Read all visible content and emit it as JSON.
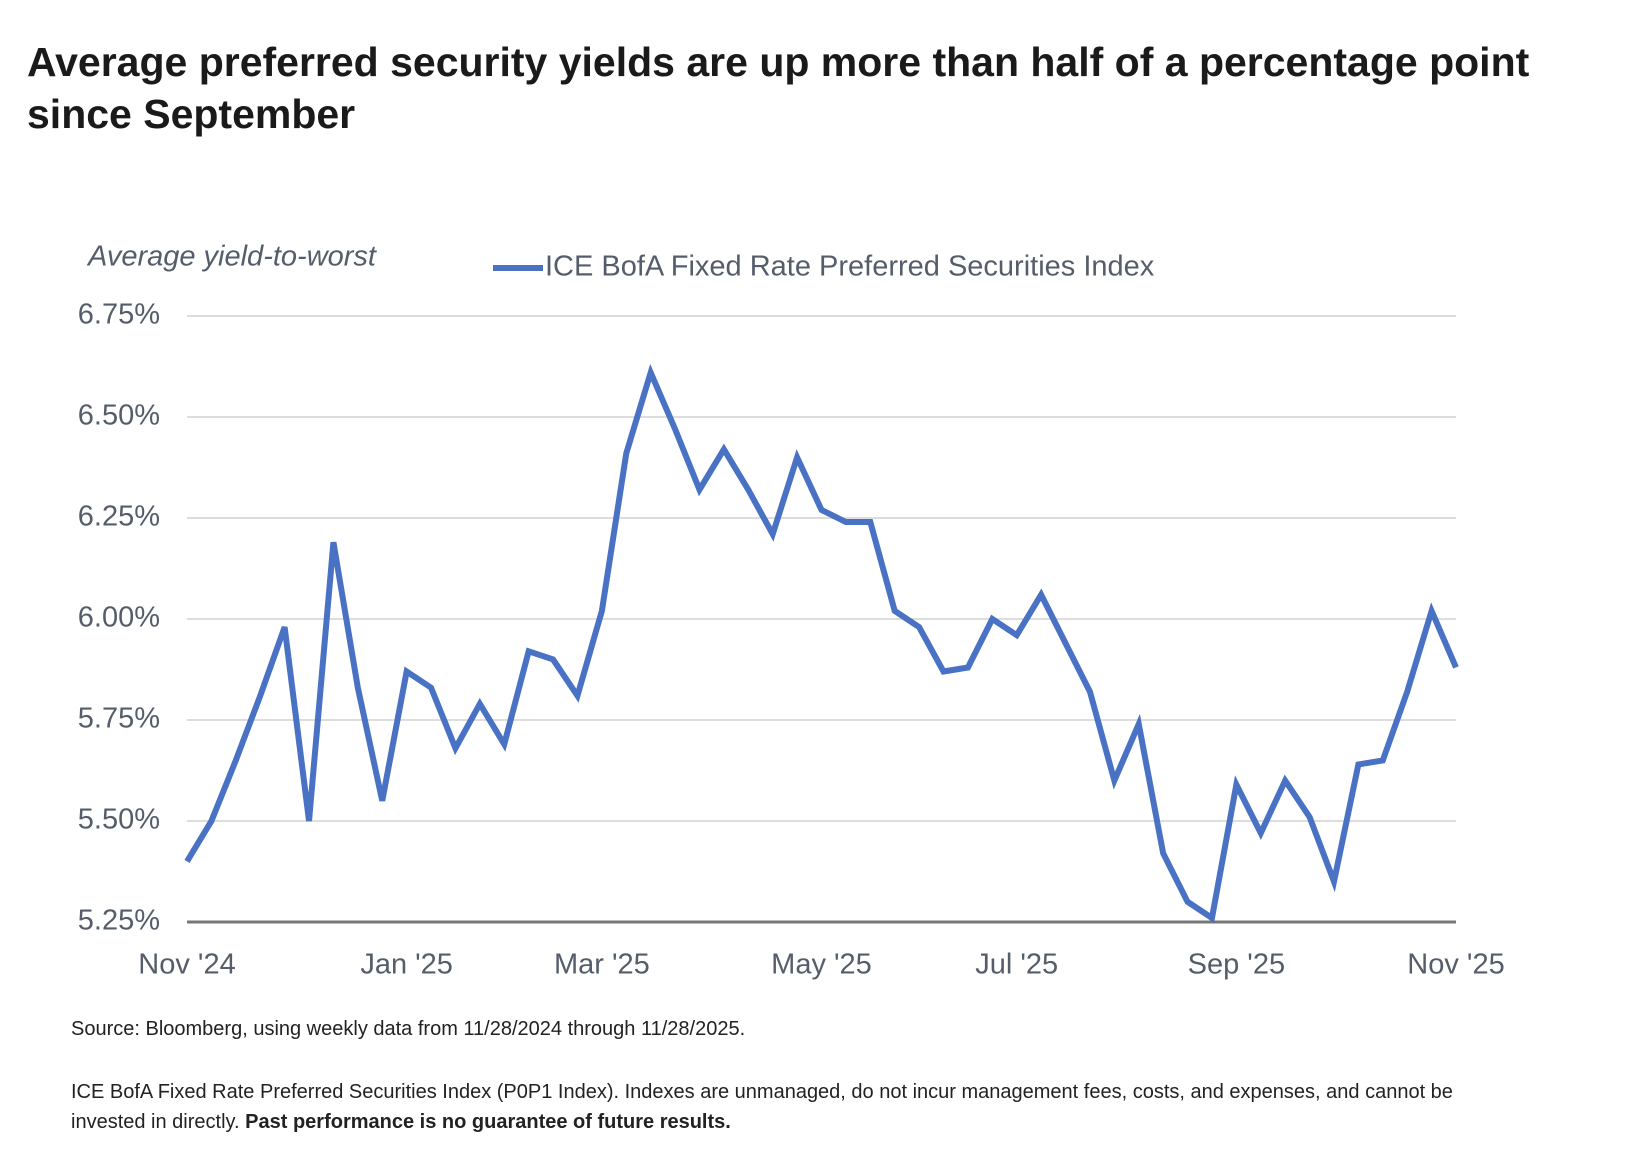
{
  "chart_data": {
    "type": "line",
    "title": "Average preferred security yields are up more than half of a percentage point since September",
    "y_axis_label": "Average yield-to-worst",
    "categories": [
      "Nov '24",
      null,
      null,
      null,
      null,
      null,
      null,
      null,
      null,
      "Jan '25",
      null,
      null,
      null,
      null,
      null,
      null,
      null,
      "Mar '25",
      null,
      null,
      null,
      null,
      null,
      null,
      null,
      null,
      "May '25",
      null,
      null,
      null,
      null,
      null,
      null,
      null,
      "Jul '25",
      null,
      null,
      null,
      null,
      null,
      null,
      null,
      null,
      "Sep '25",
      null,
      null,
      null,
      null,
      null,
      null,
      null,
      null,
      "Nov '25"
    ],
    "series": [
      {
        "name": "ICE BofA Fixed Rate Preferred Securities Index",
        "color": "#4a72c4",
        "values": [
          5.4,
          5.5,
          5.65,
          5.81,
          5.98,
          5.5,
          6.19,
          5.83,
          5.55,
          5.87,
          5.83,
          5.68,
          5.79,
          5.69,
          5.92,
          5.9,
          5.81,
          6.02,
          6.41,
          6.61,
          6.47,
          6.32,
          6.42,
          6.32,
          6.21,
          6.4,
          6.27,
          6.24,
          6.24,
          6.02,
          5.98,
          5.87,
          5.88,
          6.0,
          5.96,
          6.06,
          5.94,
          5.82,
          5.6,
          5.74,
          5.42,
          5.3,
          5.26,
          5.59,
          5.47,
          5.6,
          5.51,
          5.35,
          5.64,
          5.65,
          5.82,
          6.02,
          5.88
        ]
      }
    ],
    "ylim": [
      5.25,
      6.75
    ],
    "yticks": [
      {
        "value": 5.25,
        "label": "5.25%"
      },
      {
        "value": 5.5,
        "label": "5.50%"
      },
      {
        "value": 5.75,
        "label": "5.75%"
      },
      {
        "value": 6.0,
        "label": "6.00%"
      },
      {
        "value": 6.25,
        "label": "6.25%"
      },
      {
        "value": 6.5,
        "label": "6.50%"
      },
      {
        "value": 6.75,
        "label": "6.75%"
      }
    ],
    "grid": true,
    "source": "Source: Bloomberg, using weekly data from 11/28/2024 through 11/28/2025.",
    "note": "ICE BofA Fixed Rate Preferred Securities Index (P0P1 Index). Indexes are unmanaged, do not incur management fees, costs, and expenses, and cannot be invested in directly.",
    "note_bold": "Past performance is no guarantee of future results."
  }
}
